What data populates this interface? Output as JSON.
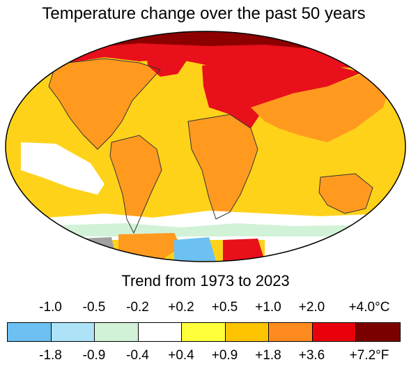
{
  "title": "Temperature change over the past 50 years",
  "subtitle": "Trend from 1973 to 2023",
  "legend": {
    "celsius_labels": [
      "-1.0",
      "-0.5",
      "-0.2",
      "+0.2",
      "+0.5",
      "+1.0",
      "+2.0",
      "+4.0°C"
    ],
    "fahrenheit_labels": [
      "-1.8",
      "-0.9",
      "-0.4",
      "+0.4",
      "+0.9",
      "+1.8",
      "+3.6",
      "+7.2°F"
    ],
    "colors": [
      "#6cc0f2",
      "#aee3f7",
      "#d2f2d7",
      "#ffffff",
      "#ffff3c",
      "#ffc400",
      "#ff8a1f",
      "#e8000b",
      "#7a0000"
    ]
  },
  "map_colors": {
    "ocean_base": "#ffd21a",
    "warm": "#ff9a1f",
    "hot": "#e8101a",
    "extreme": "#8c0000",
    "cool_white": "#ffffff",
    "cool_green": "#d2f2d7",
    "cool_blue": "#aee3f7",
    "cold_blue": "#6cc0f2",
    "no_data": "#a0a0a0",
    "coastline": "#333333",
    "border": "#000000"
  }
}
